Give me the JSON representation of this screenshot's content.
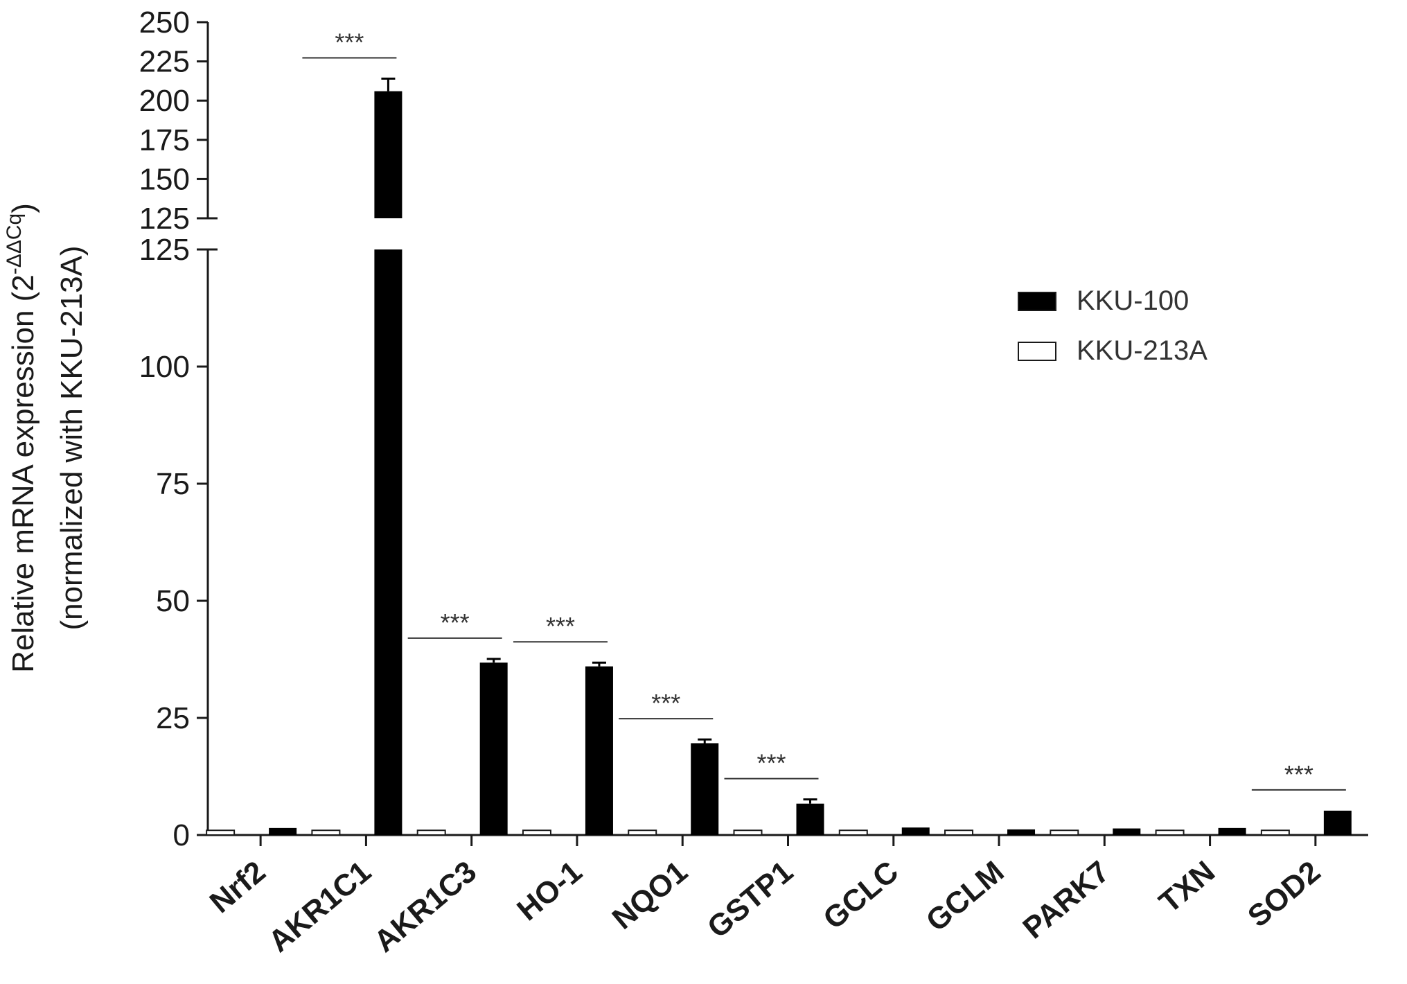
{
  "chart_data": {
    "type": "bar",
    "ylabel_line1_main": "Relative mRNA expression (2",
    "ylabel_line1_sup": "-ΔΔCq",
    "ylabel_line1_close": ")",
    "ylabel_line2": "(normalized with KKU-213A)",
    "categories": [
      "Nrf2",
      "AKR1C1",
      "AKR1C3",
      "HO-1",
      "NQO1",
      "GSTP1",
      "GCLC",
      "GCLM",
      "PARK7",
      "TXN",
      "SOD2"
    ],
    "series": [
      {
        "name": "KKU-213A",
        "color": "#ffffff",
        "values": [
          1,
          1,
          1,
          1,
          1,
          1,
          1,
          1,
          1,
          1,
          1
        ]
      },
      {
        "name": "KKU-100",
        "color": "#000000",
        "values": [
          1.5,
          206,
          36.8,
          36,
          19.6,
          6.7,
          1.6,
          1.2,
          1.4,
          1.5,
          5.2
        ],
        "errors": [
          0,
          8,
          0.8,
          0.8,
          0.8,
          0.9,
          0,
          0,
          0,
          0,
          0
        ]
      }
    ],
    "significance": [
      "",
      "***",
      "***",
      "***",
      "***",
      "***",
      "",
      "",
      "",
      "",
      "***"
    ],
    "y_axis_lower": {
      "range": [
        0,
        125
      ],
      "ticks": [
        "0",
        "25",
        "50",
        "75",
        "100",
        "125"
      ]
    },
    "y_axis_upper": {
      "range": [
        125,
        250
      ],
      "ticks": [
        "125",
        "150",
        "175",
        "200",
        "225",
        "250"
      ]
    },
    "broken_axis": true,
    "legend_position": "top-right",
    "legend_order": [
      "KKU-100",
      "KKU-213A"
    ],
    "grid": false
  }
}
